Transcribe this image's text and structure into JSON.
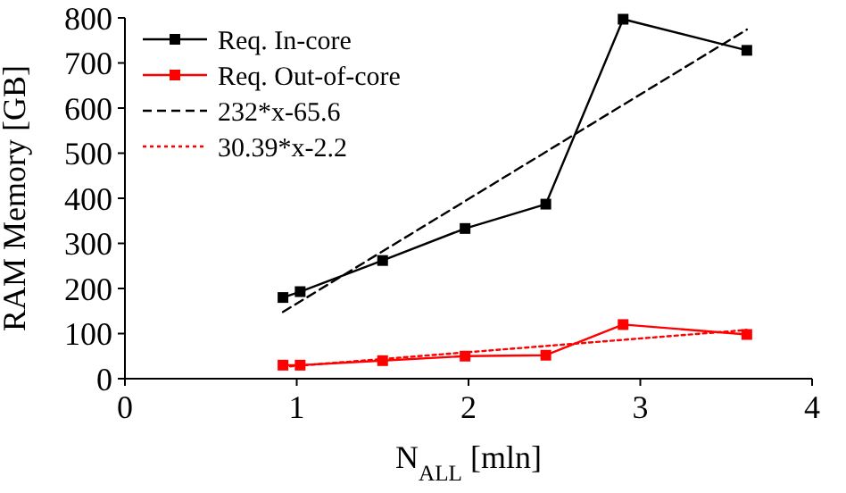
{
  "chart_data": {
    "type": "line",
    "xlabel": "N$_{ALL}$ [mln]",
    "ylabel": "RAM Memory [GB]",
    "xlim": [
      0,
      4
    ],
    "xticks": [
      0,
      1,
      2,
      3,
      4
    ],
    "ylim": [
      0,
      800
    ],
    "yticks": [
      0,
      100,
      200,
      300,
      400,
      500,
      600,
      700,
      800
    ],
    "grid": false,
    "legend": "top left",
    "marker": "square",
    "line_style": "solid",
    "series": [
      {
        "name": "Req. In-core",
        "color": "#000000",
        "x": [
          0.92,
          1.02,
          1.5,
          1.98,
          2.45,
          2.9,
          3.62
        ],
        "values": [
          180,
          193,
          262,
          333,
          387,
          797,
          728
        ]
      },
      {
        "name": "Req. Out-of-core",
        "color": "#ff0000",
        "x": [
          0.92,
          1.02,
          1.5,
          1.98,
          2.45,
          2.9,
          3.62
        ],
        "values": [
          30,
          30,
          40,
          50,
          52,
          120,
          98
        ]
      },
      {
        "name": "232*x-65.6",
        "color": "#000000",
        "marker": "none",
        "line_style": "dashed",
        "x": [
          0.92,
          3.62
        ],
        "values": [
          148,
          774
        ]
      },
      {
        "name": "30.39*x-2.2",
        "color": "#ff0000",
        "marker": "none",
        "line_style": "dotted",
        "x": [
          0.92,
          3.62
        ],
        "values": [
          26,
          108
        ]
      }
    ]
  }
}
